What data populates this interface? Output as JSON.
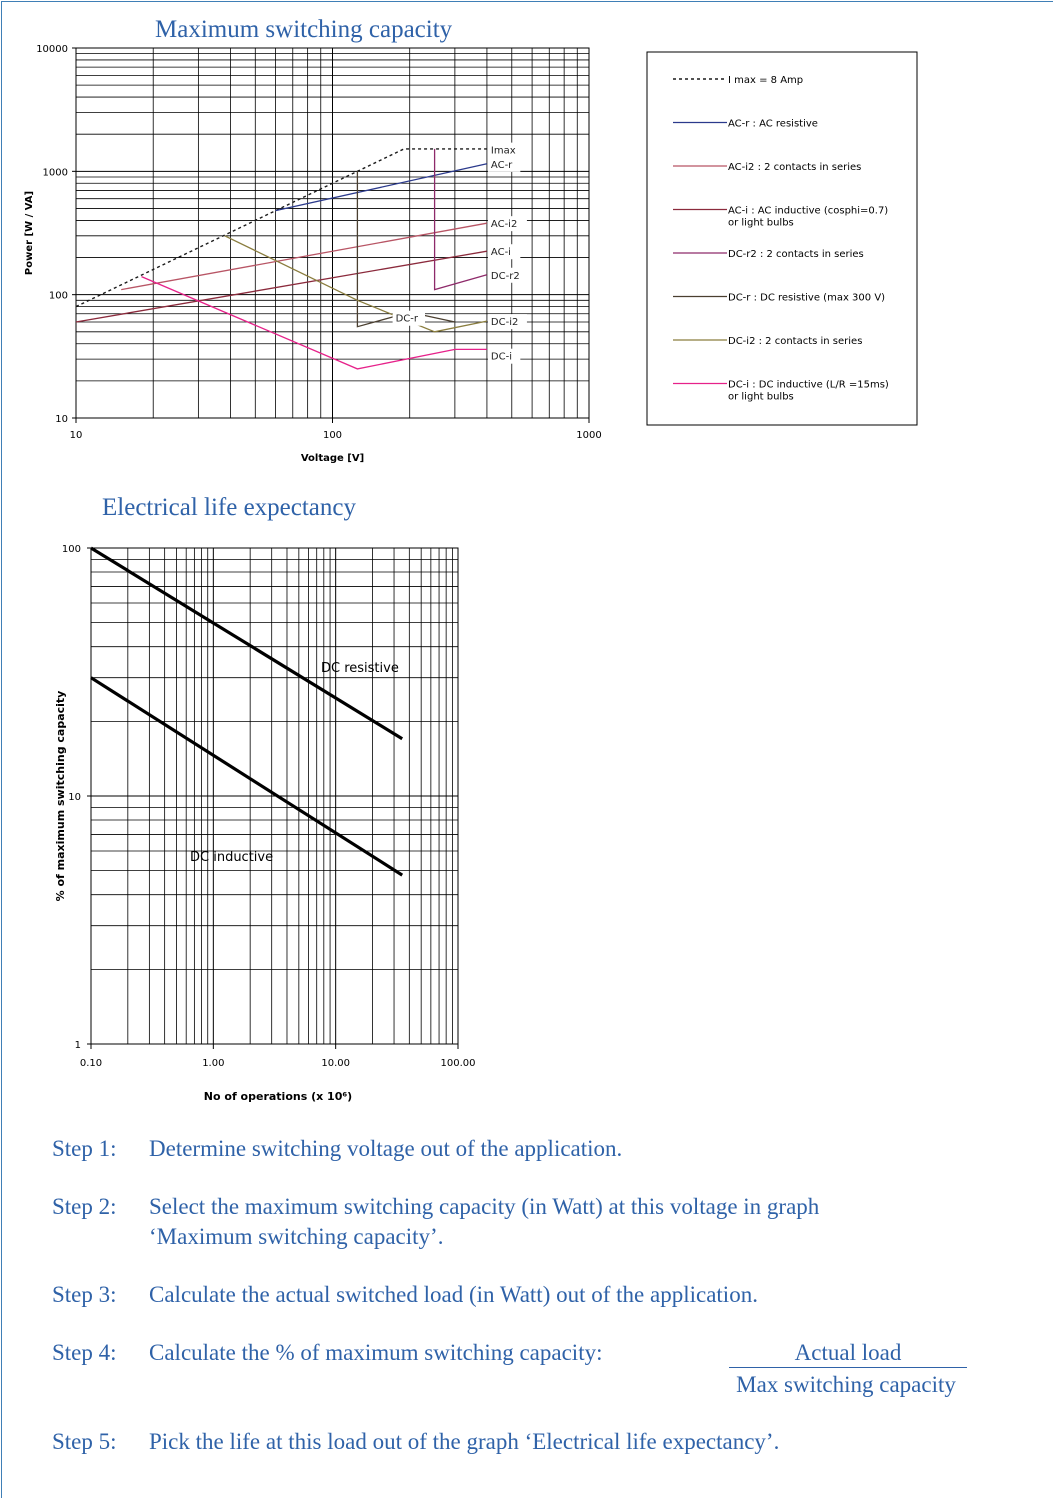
{
  "chart_data": [
    {
      "type": "line",
      "title": "Maximum switching capacity",
      "xlabel": "Voltage [V]",
      "ylabel": "Power [W / VA]",
      "x_scale": "log",
      "y_scale": "log",
      "xlim": [
        10,
        1000
      ],
      "ylim": [
        10,
        10000
      ],
      "x_ticks": [
        "10",
        "100",
        "1000"
      ],
      "y_ticks": [
        "10",
        "100",
        "1000",
        "10000"
      ],
      "grid": true,
      "legend_position": "right",
      "series": [
        {
          "name": "I max = 8 Amp",
          "label": "Imax",
          "color": "#1a1a1a",
          "dash": true,
          "points": [
            [
              10,
              80
            ],
            [
              190,
              1520
            ],
            [
              400,
              1520
            ]
          ]
        },
        {
          "name": "AC-r : AC resistive",
          "label": "AC-r",
          "color": "#2b3a8c",
          "points": [
            [
              60,
              480
            ],
            [
              400,
              1150
            ]
          ]
        },
        {
          "name": "AC-i2 : 2 contacts in series",
          "label": "AC-i2",
          "color": "#b85565",
          "points": [
            [
              15,
              110
            ],
            [
              400,
              380
            ]
          ]
        },
        {
          "name": "AC-i : AC inductive (cosphi=0.7) or light bulbs",
          "label": "AC-i",
          "color": "#8b2a3c",
          "points": [
            [
              10,
              60
            ],
            [
              400,
              225
            ]
          ]
        },
        {
          "name": "DC-r2 : 2 contacts in series",
          "label": "DC-r2",
          "color": "#8e2a6a",
          "points": [
            [
              250,
              1520
            ],
            [
              250,
              110
            ],
            [
              400,
              145
            ]
          ]
        },
        {
          "name": "DC-r : DC resistive (max 300 V)",
          "label": "DC-r",
          "color": "#4a3f30",
          "points": [
            [
              125,
              1000
            ],
            [
              125,
              55
            ],
            [
              200,
              72
            ],
            [
              300,
              60
            ]
          ]
        },
        {
          "name": "DC-i2 : 2 contacts in series",
          "label": "DC-i2",
          "color": "#8a7d3e",
          "points": [
            [
              38,
              300
            ],
            [
              125,
              90
            ],
            [
              250,
              50
            ],
            [
              400,
              61
            ]
          ]
        },
        {
          "name": "DC-i : DC inductive (L/R =15ms) or light bulbs",
          "label": "DC-i",
          "color": "#e6228a",
          "points": [
            [
              18,
              140
            ],
            [
              125,
              25
            ],
            [
              300,
              36
            ],
            [
              400,
              36
            ]
          ]
        }
      ]
    },
    {
      "type": "line",
      "title": "Electrical life expectancy",
      "xlabel": "No of operations (x 10⁶)",
      "ylabel": "% of maximum switching capacity",
      "x_scale": "log",
      "y_scale": "log",
      "xlim": [
        0.1,
        100
      ],
      "ylim": [
        1,
        100
      ],
      "x_ticks": [
        "0.10",
        "1.00",
        "10.00",
        "100.00"
      ],
      "y_ticks": [
        "1",
        "10",
        "100"
      ],
      "grid": true,
      "series": [
        {
          "label": "DC resistive",
          "color": "#000000",
          "points": [
            [
              0.1,
              100
            ],
            [
              35,
              17
            ]
          ]
        },
        {
          "label": "DC inductive",
          "color": "#000000",
          "points": [
            [
              0.1,
              30
            ],
            [
              35,
              4.8
            ]
          ]
        }
      ]
    }
  ],
  "steps": [
    {
      "num": "Step 1:",
      "text": "Determine switching voltage out of the application."
    },
    {
      "num": "Step 2:",
      "text": "Select the maximum switching capacity (in Watt) at this voltage in graph",
      "text2": "‘Maximum switching capacity’."
    },
    {
      "num": "Step 3:",
      "text": "Calculate the actual switched load (in Watt) out of the application."
    },
    {
      "num": "Step 4:",
      "text": "Calculate the % of maximum switching capacity:",
      "numerator": "Actual load",
      "denominator": "Max switching capacity"
    },
    {
      "num": "Step 5:",
      "text": "Pick the life at this load out of the graph ‘Electrical life expectancy’."
    }
  ]
}
